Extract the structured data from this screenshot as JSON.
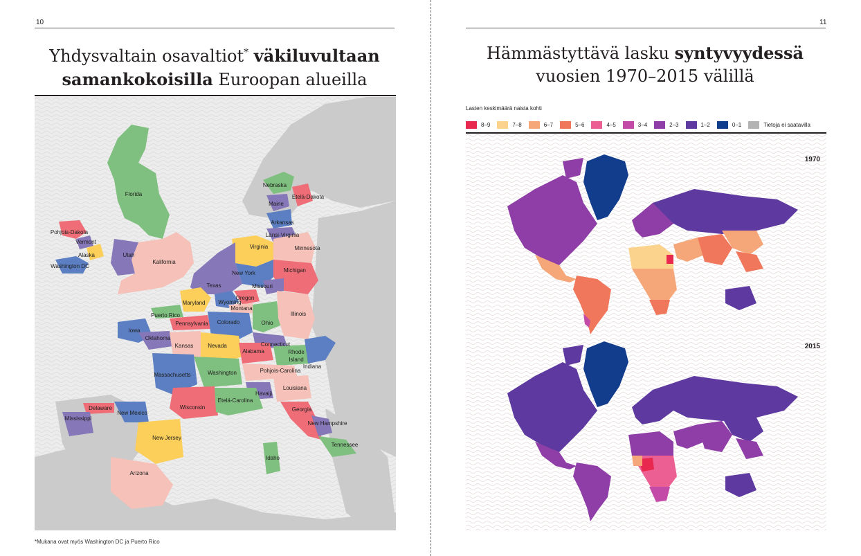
{
  "left_page": {
    "page_number": "10",
    "title_part1": "Yhdysvaltain osavaltiot",
    "title_asterisk": "*",
    "title_bold1": "väkiluvultaan",
    "title_bold2": "samankokoisilla",
    "title_part2": "Euroopan alueilla",
    "footnote": "*Mukana ovat myös Washington DC ja Puerto Rico",
    "map_labels": {
      "florida": "Florida",
      "nebraska": "Nebraska",
      "etela_dakota": "Etelä-Dakota",
      "maine": "Maine",
      "arkansas": "Arkansas",
      "lansi_virginia": "Länsi-Virginia",
      "pohjois_dakota": "Pohjois-Dakota",
      "vermont": "Vermont",
      "alaska": "Alaska",
      "washington_dc": "Washington DC",
      "utah": "Utah",
      "kalifornia": "Kalifornia",
      "virginia": "Virginia",
      "minnesota": "Minnesota",
      "michigan": "Michigan",
      "new_york": "New York",
      "texas": "Texas",
      "missouri": "Missouri",
      "maryland": "Maryland",
      "wyoming": "Wyoming",
      "oregon": "Oregon",
      "montana": "Montana",
      "puerto_rico": "Puerto Rico",
      "pennsylvania": "Pennsylvania",
      "colorado": "Colorado",
      "ohio": "Ohio",
      "illinois": "Illinois",
      "iowa": "Iowa",
      "oklahoma": "Oklahoma",
      "kansas": "Kansas",
      "nevada": "Nevada",
      "connecticut": "Connecticut",
      "alabama": "Alabama",
      "rhode_island_1": "Rhode",
      "rhode_island_2": "Island",
      "indiana": "Indiana",
      "massachusetts": "Massachusetts",
      "washington": "Washington",
      "pohjois_carolina": "Pohjois-Carolina",
      "havaiji": "Havaiji",
      "louisiana": "Louisiana",
      "delaware": "Delaware",
      "new_mexico": "New Mexico",
      "mississippi": "Mississippi",
      "wisconsin": "Wisconsin",
      "etela_carolina": "Etelä-Carolina",
      "georgia": "Georgia",
      "new_hampshire": "New Hampshire",
      "new_jersey": "New Jersey",
      "tennessee": "Tennessee",
      "idaho": "Idaho",
      "arizona": "Arizona"
    },
    "colors": {
      "green": "#7fbf7f",
      "pink": "#f5c1b8",
      "yellow": "#fbcf5a",
      "blue": "#5b7fc2",
      "purple": "#8577b8",
      "red": "#ee6d77",
      "land_gray": "#cbcbcb",
      "sea": "#ececec"
    }
  },
  "right_page": {
    "page_number": "11",
    "title_part1": "Hämmästyttävä lasku",
    "title_bold": "syntyvyydessä",
    "title_part2": "vuosien 1970–2015 välillä",
    "legend_title": "Lasten keskimäärä naista kohti",
    "legend": [
      {
        "label": "8–9",
        "color": "#e8284e"
      },
      {
        "label": "7–8",
        "color": "#fbd38d"
      },
      {
        "label": "6–7",
        "color": "#f6a77a"
      },
      {
        "label": "5–6",
        "color": "#f0775b"
      },
      {
        "label": "4–5",
        "color": "#ec5f93"
      },
      {
        "label": "3–4",
        "color": "#c44aa7"
      },
      {
        "label": "2–3",
        "color": "#8e3ea6"
      },
      {
        "label": "1–2",
        "color": "#5e3aa0"
      },
      {
        "label": "0–1",
        "color": "#123c8c"
      },
      {
        "label": "Tietoja ei saatavilla",
        "color": "#b3b3b3"
      }
    ],
    "year_top": "1970",
    "year_bottom": "2015"
  }
}
